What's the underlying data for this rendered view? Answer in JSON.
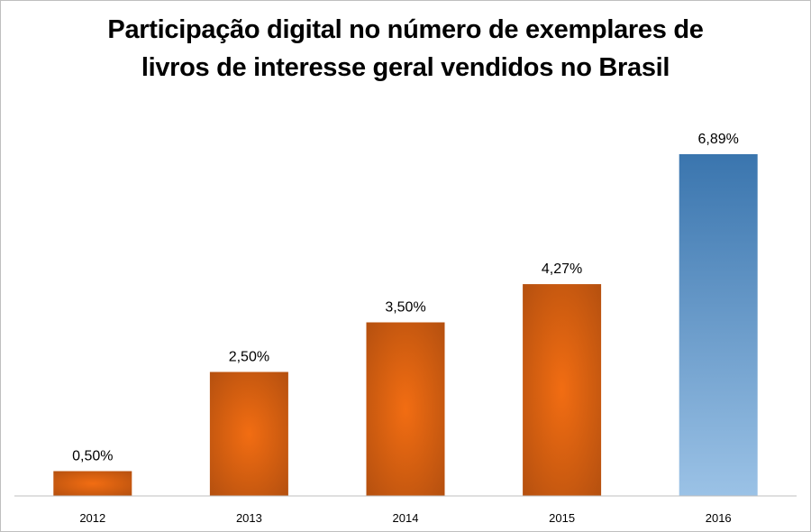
{
  "chart_data": {
    "type": "bar",
    "title_lines": [
      "Participação digital no número de exemplares de",
      "livros de interesse geral vendidos no Brasil"
    ],
    "categories": [
      "2012",
      "2013",
      "2014",
      "2015",
      "2016"
    ],
    "values": [
      0.5,
      2.5,
      3.5,
      4.27,
      6.89
    ],
    "data_labels": [
      "0,50%",
      "2,50%",
      "3,50%",
      "4,27%",
      "6,89%"
    ],
    "highlight_index": 4,
    "colors": {
      "bar_center": "#f26d12",
      "bar_edge": "#b5500f",
      "highlight_top": "#3a75ae",
      "highlight_bottom": "#9bc2e6",
      "axis": "#bfbfbf"
    },
    "xlabel": "",
    "ylabel": "",
    "grid": false,
    "legend": "none"
  }
}
